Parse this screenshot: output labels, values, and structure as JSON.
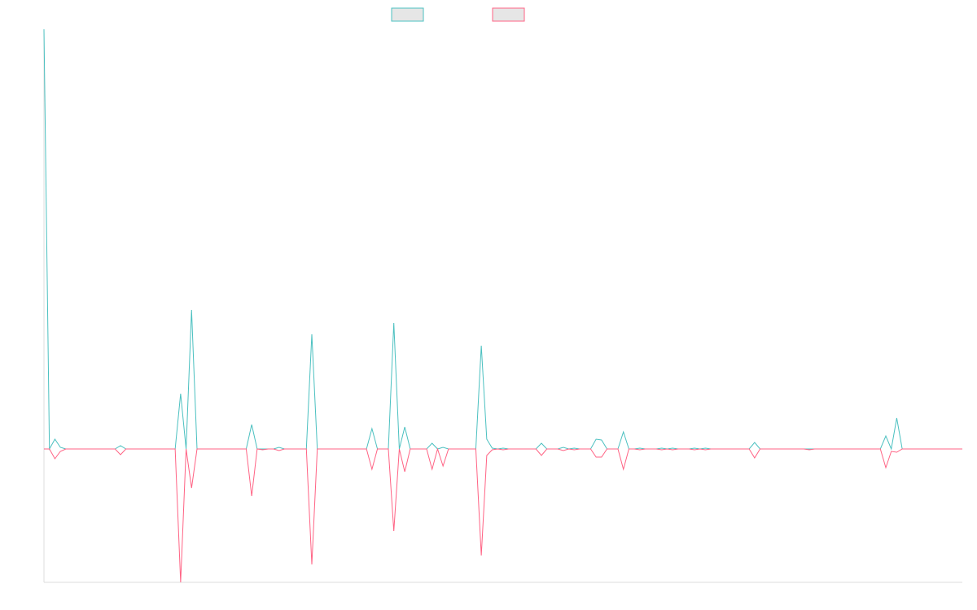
{
  "chart_data": {
    "type": "line",
    "categories": [
      null,
      null,
      null,
      null,
      null,
      null,
      null,
      null,
      null,
      null,
      null,
      null,
      null,
      null,
      null,
      null,
      null,
      null,
      null,
      null,
      null,
      null,
      null,
      null,
      null,
      null,
      null,
      null,
      null,
      null,
      null,
      null,
      null,
      null,
      null,
      null,
      null,
      null,
      null,
      null,
      null,
      null,
      null,
      null,
      null,
      null,
      null,
      null,
      null,
      null,
      null,
      null,
      null,
      null,
      null,
      null,
      null,
      null,
      null,
      null,
      null,
      null,
      null,
      null,
      null,
      null,
      null,
      null,
      null,
      null,
      null,
      null,
      null,
      null,
      null,
      null,
      null,
      null,
      null,
      null,
      null,
      null,
      null,
      null,
      null,
      null,
      null,
      null,
      null,
      null,
      null,
      null,
      null,
      null,
      null,
      null,
      null,
      null,
      null,
      null,
      null,
      null,
      null,
      null,
      null,
      null,
      null,
      null,
      null,
      null,
      null,
      null,
      null,
      null,
      null,
      null,
      null,
      null,
      null,
      null,
      null,
      null,
      null,
      null,
      null,
      null,
      null,
      null,
      null,
      null,
      null,
      null,
      null,
      null,
      null,
      null,
      null,
      null,
      null,
      null,
      null,
      null,
      null,
      null,
      null,
      null,
      null,
      null,
      null,
      null,
      null,
      null,
      null,
      null,
      null,
      null,
      null,
      null,
      null,
      null,
      null,
      null,
      null,
      null,
      null,
      null,
      null,
      null,
      null
    ],
    "series": [
      {
        "color": "#4bc0c0",
        "values": [
          5.16,
          0,
          0.12,
          0.02,
          0,
          0,
          0,
          0,
          0,
          0,
          0,
          0,
          0,
          0,
          0.04,
          0,
          0,
          0,
          0,
          0,
          0,
          0,
          0,
          0,
          0,
          0.68,
          0,
          1.71,
          0,
          0,
          0,
          0,
          0,
          0,
          0,
          0,
          0,
          0,
          0.3,
          0,
          0,
          0,
          0,
          0.02,
          0,
          0,
          0,
          0,
          0,
          1.41,
          0,
          0,
          0,
          0,
          0,
          0,
          0,
          0,
          0,
          0,
          0.25,
          0,
          0,
          0,
          1.55,
          0,
          0.27,
          0,
          0,
          0,
          0,
          0.07,
          0,
          0.02,
          0,
          0,
          0,
          0,
          0,
          0,
          1.27,
          0.12,
          0.01,
          0,
          0.01,
          0,
          0,
          0,
          0,
          0,
          0,
          0.07,
          0,
          0,
          0,
          0.02,
          0,
          0.01,
          0,
          0,
          0,
          0.12,
          0.11,
          0,
          0,
          0,
          0.21,
          0,
          0,
          0.01,
          0,
          0,
          0,
          0.01,
          0,
          0.01,
          0,
          0,
          0,
          0.01,
          0,
          0.01,
          0,
          0,
          0,
          0,
          0,
          0,
          0,
          0,
          0.08,
          0,
          0,
          0,
          0,
          0,
          0,
          0,
          0,
          0,
          0,
          0,
          0,
          0,
          0,
          0,
          0,
          0,
          0,
          0,
          0,
          0,
          0,
          0,
          0.16,
          0,
          0.38,
          0,
          0,
          0,
          0,
          0,
          0,
          0,
          0,
          0,
          0,
          0,
          0
        ]
      },
      {
        "color": "#ff6384",
        "values": [
          0,
          0,
          -0.12,
          -0.03,
          0,
          0,
          0,
          0,
          0,
          0,
          0,
          0,
          0,
          0,
          -0.07,
          0,
          0,
          0,
          0,
          0,
          0,
          0,
          0,
          0,
          0,
          -1.64,
          0,
          -0.48,
          0,
          0,
          0,
          0,
          0,
          0,
          0,
          0,
          0,
          0,
          -0.58,
          0,
          -0.01,
          0,
          0,
          -0.02,
          0,
          0,
          0,
          0,
          0,
          -1.42,
          0,
          0,
          0,
          0,
          0,
          0,
          0,
          0,
          0,
          0,
          -0.25,
          0,
          0,
          0,
          -1.01,
          0,
          -0.28,
          0,
          0,
          0,
          0,
          -0.25,
          0,
          -0.21,
          0,
          0,
          0,
          0,
          0,
          0,
          -1.31,
          -0.08,
          -0.01,
          0,
          -0.01,
          0,
          0,
          0,
          0,
          0,
          0,
          -0.08,
          0,
          0,
          0,
          -0.02,
          0,
          -0.01,
          0,
          0,
          0,
          -0.1,
          -0.1,
          0,
          0,
          0,
          -0.25,
          0,
          0,
          -0.01,
          0,
          0,
          0,
          -0.01,
          0,
          -0.01,
          0,
          0,
          0,
          -0.01,
          0,
          -0.01,
          0,
          0,
          0,
          0,
          0,
          0,
          0,
          0,
          -0.11,
          0,
          0,
          0,
          0,
          0,
          0,
          0,
          0,
          0,
          -0.01,
          0,
          0,
          0,
          0,
          0,
          0,
          0,
          0,
          0,
          0,
          0,
          0,
          0,
          -0.23,
          -0.03,
          -0.04,
          0,
          0,
          0,
          0,
          0,
          0,
          0,
          0,
          0,
          0,
          0,
          0
        ]
      }
    ],
    "ylim": [
      -1.64,
      5.16
    ],
    "grid": false
  }
}
